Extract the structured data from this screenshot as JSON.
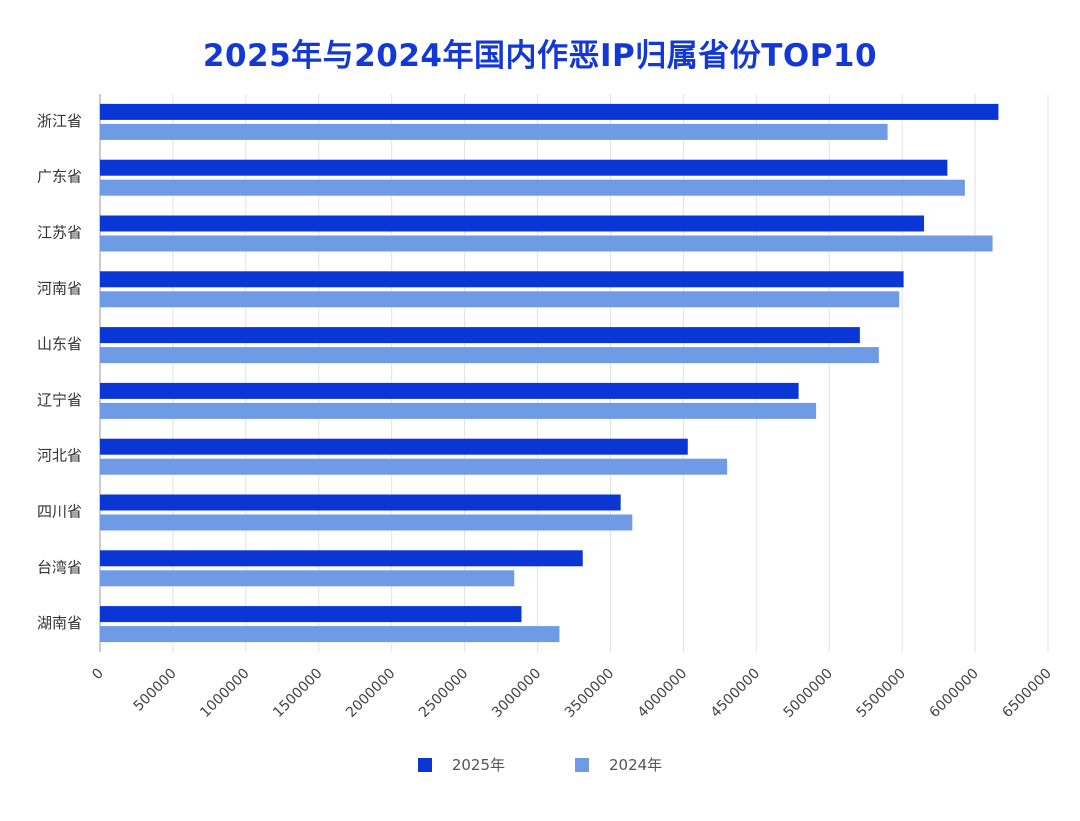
{
  "chart_data": {
    "type": "bar",
    "orientation": "horizontal",
    "title": "2025年与2024年国内作恶IP归属省份TOP10",
    "categories": [
      "浙江省",
      "广东省",
      "江苏省",
      "河南省",
      "山东省",
      "辽宁省",
      "河北省",
      "四川省",
      "台湾省",
      "湖南省"
    ],
    "series": [
      {
        "name": "2025年",
        "color": "#0a36d6",
        "values": [
          6160000,
          5810000,
          5650000,
          5510000,
          5210000,
          4790000,
          4030000,
          3570000,
          3310000,
          2890000
        ]
      },
      {
        "name": "2024年",
        "color": "#6e9ae6",
        "values": [
          5400000,
          5930000,
          6120000,
          5480000,
          5340000,
          4910000,
          4300000,
          3650000,
          2840000,
          3150000
        ]
      }
    ],
    "xlim": [
      0,
      6500000
    ],
    "xticks": [
      "0",
      "500000",
      "1000000",
      "1500000",
      "2000000",
      "2500000",
      "3000000",
      "3500000",
      "4000000",
      "4500000",
      "5000000",
      "5500000",
      "6000000",
      "6500000"
    ],
    "xtick_values": [
      0,
      500000,
      1000000,
      1500000,
      2000000,
      2500000,
      3000000,
      3500000,
      4000000,
      4500000,
      5000000,
      5500000,
      6000000,
      6500000
    ],
    "grid": true,
    "legend_position": "bottom"
  }
}
